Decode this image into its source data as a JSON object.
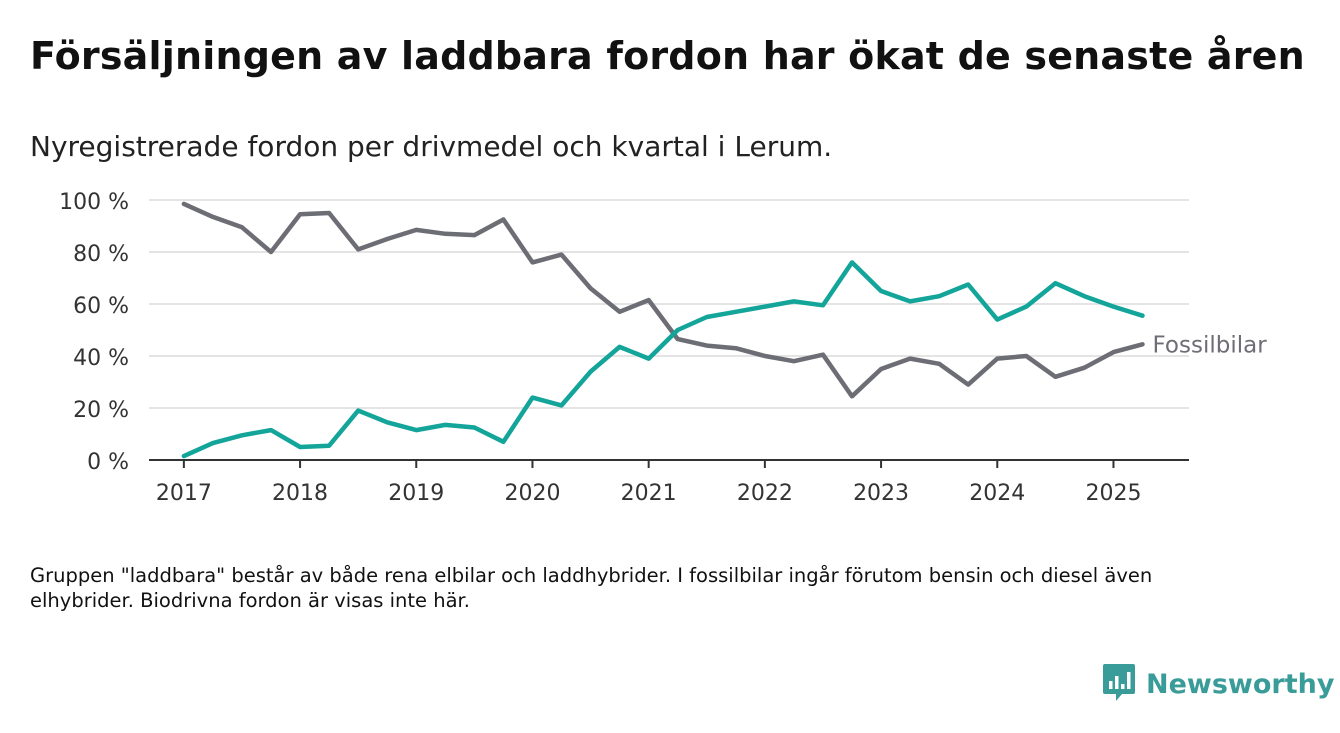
{
  "title": "Försäljningen av laddbara fordon har ökat de senaste åren",
  "subtitle": "Nyregistrerade fordon per drivmedel och kvartal i Lerum.",
  "note": "Gruppen \"laddbara\" består av både rena elbilar och laddhybrider. I fossilbilar ingår förutom bensin och diesel även elhybrider. Biodrivna fordon är visas inte här.",
  "brand": {
    "name": "Newsworthy",
    "logo_icon": "bar-chart-speech-icon",
    "color": "#3a9c99"
  },
  "chart_data": {
    "type": "line",
    "x_start": 2017.0,
    "x_step": 0.25,
    "xlim": [
      2016.7,
      2025.65
    ],
    "ylim": [
      0,
      100
    ],
    "x_ticks": [
      2017,
      2018,
      2019,
      2020,
      2021,
      2022,
      2023,
      2024,
      2025
    ],
    "x_tick_labels": [
      "2017",
      "2018",
      "2019",
      "2020",
      "2021",
      "2022",
      "2023",
      "2024",
      "2025"
    ],
    "y_ticks": [
      0,
      20,
      40,
      60,
      80,
      100
    ],
    "y_tick_labels": [
      "0 %",
      "20 %",
      "40 %",
      "60 %",
      "80 %",
      "100 %"
    ],
    "grid": true,
    "series": [
      {
        "name": "Fossilbilar",
        "color": "#6d6d75",
        "values": [
          98.5,
          93.5,
          89.5,
          80,
          94.5,
          95,
          81,
          85,
          88.5,
          87,
          86.5,
          92.5,
          76,
          79,
          66,
          57,
          61.5,
          46.5,
          44,
          43,
          40,
          38,
          40.5,
          24.5,
          35,
          39,
          37,
          29,
          39,
          40,
          32,
          35.5,
          41.5,
          44.5
        ]
      },
      {
        "name": "",
        "color": "#13a49a",
        "values": [
          1.5,
          6.5,
          9.5,
          11.5,
          5,
          5.5,
          19,
          14.5,
          11.5,
          13.5,
          12.5,
          7,
          24,
          21,
          34,
          43.5,
          39,
          50,
          55,
          57,
          59,
          61,
          59.5,
          76,
          65,
          61,
          63,
          67.5,
          54,
          59,
          68,
          63,
          59,
          55.5
        ]
      }
    ]
  }
}
